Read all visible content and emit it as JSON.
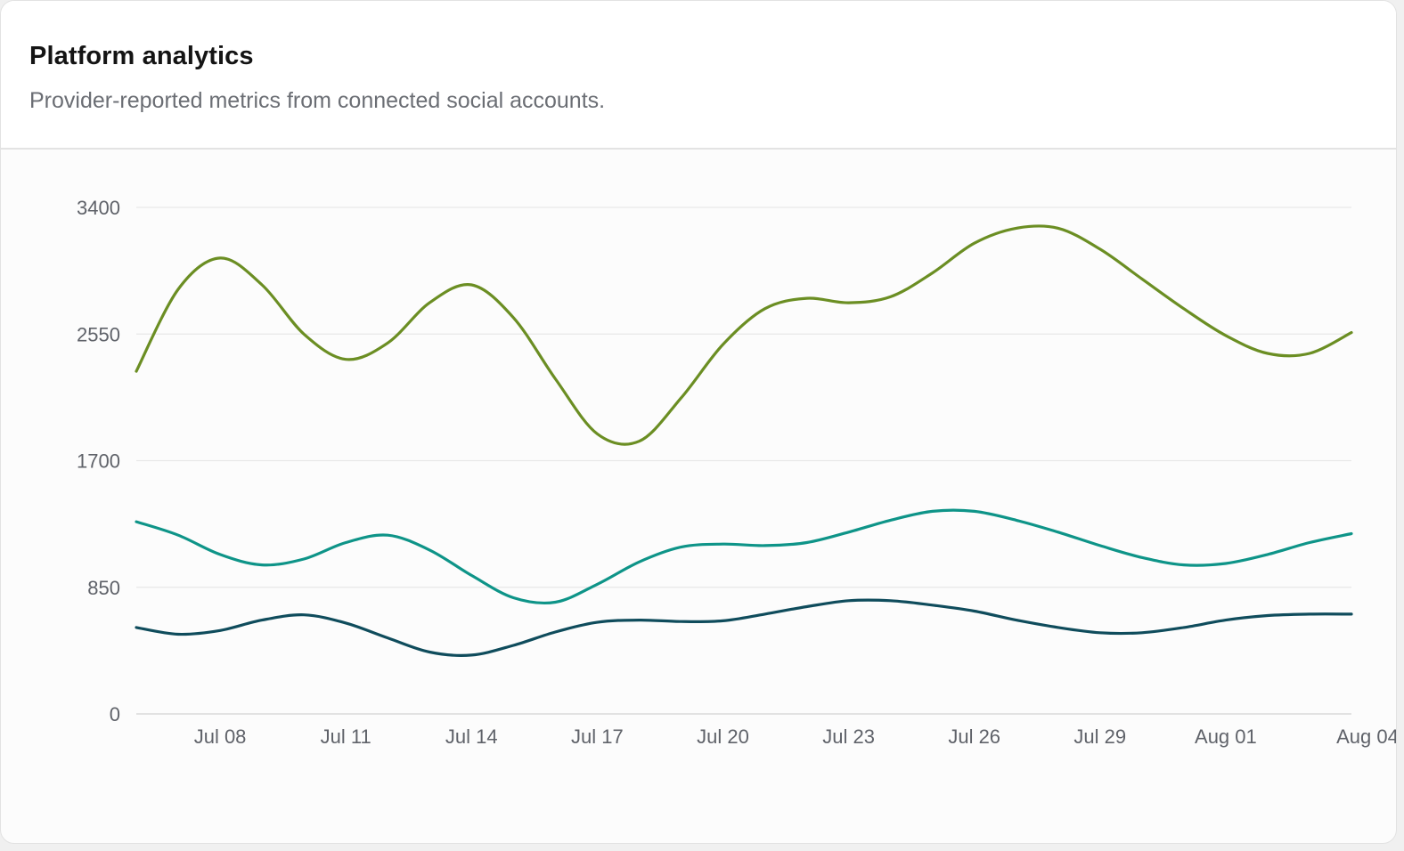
{
  "card": {
    "title": "Platform analytics",
    "subtitle": "Provider-reported metrics from connected social accounts."
  },
  "chart_data": {
    "type": "line",
    "y_ticks": [
      "0",
      "850",
      "1700",
      "2550",
      "3400"
    ],
    "ylim": [
      0,
      3400
    ],
    "x_ticks": [
      "Jul 08",
      "Jul 11",
      "Jul 14",
      "Jul 17",
      "Jul 20",
      "Jul 23",
      "Jul 26",
      "Jul 29",
      "Aug 01",
      "Aug 04"
    ],
    "x": [
      "Jul 06",
      "Jul 07",
      "Jul 08",
      "Jul 09",
      "Jul 10",
      "Jul 11",
      "Jul 12",
      "Jul 13",
      "Jul 14",
      "Jul 15",
      "Jul 16",
      "Jul 17",
      "Jul 18",
      "Jul 19",
      "Jul 20",
      "Jul 21",
      "Jul 22",
      "Jul 23",
      "Jul 24",
      "Jul 25",
      "Jul 26",
      "Jul 27",
      "Jul 28",
      "Jul 29",
      "Jul 30",
      "Jul 31",
      "Aug 01",
      "Aug 02",
      "Aug 03",
      "Aug 04"
    ],
    "grid": true,
    "legend": "none",
    "series": [
      {
        "color": "#6b8e23",
        "values": [
          2300,
          2850,
          3060,
          2880,
          2550,
          2380,
          2490,
          2760,
          2880,
          2660,
          2250,
          1880,
          1830,
          2120,
          2480,
          2720,
          2790,
          2760,
          2800,
          2960,
          3160,
          3260,
          3260,
          3120,
          2920,
          2720,
          2540,
          2420,
          2420,
          2560
        ]
      },
      {
        "color": "#0e9488",
        "values": [
          1290,
          1200,
          1070,
          1000,
          1040,
          1150,
          1200,
          1100,
          930,
          780,
          750,
          870,
          1020,
          1120,
          1140,
          1130,
          1150,
          1220,
          1300,
          1360,
          1360,
          1300,
          1220,
          1130,
          1050,
          1000,
          1010,
          1070,
          1150,
          1210
        ]
      },
      {
        "color": "#0f4c5c",
        "values": [
          580,
          535,
          560,
          630,
          665,
          610,
          510,
          415,
          395,
          460,
          550,
          615,
          630,
          620,
          625,
          670,
          720,
          760,
          760,
          730,
          690,
          630,
          580,
          545,
          545,
          580,
          630,
          660,
          670,
          670
        ]
      }
    ]
  }
}
